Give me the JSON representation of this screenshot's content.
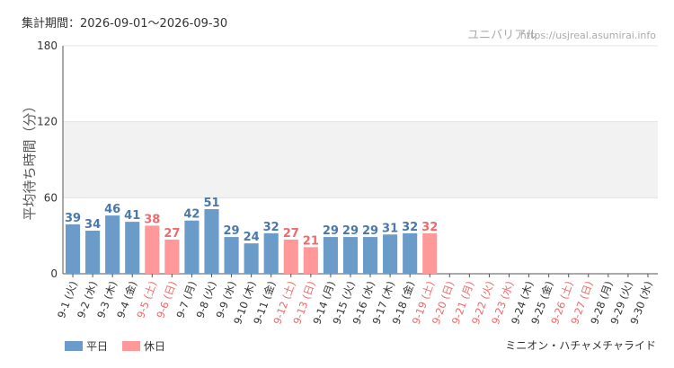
{
  "header": {
    "period": "集計期間：2026-09-01〜2026-09-30",
    "site_name": "ユニバリアル",
    "site_url": "https://usjreal.asumirai.info"
  },
  "footer": {
    "attraction": "ミニオン・ハチャメチャライド"
  },
  "colors": {
    "weekday": "#6b9bc9",
    "weekday_label": "#4a78aa",
    "holiday": "#ff9999",
    "holiday_label": "#ee6a6a",
    "band": "#f2f2f2",
    "grid": "#e3e3e3",
    "axis": "#555555",
    "tick_text": "#333333"
  },
  "chart_data": {
    "type": "bar",
    "ylabel": "平均待ち時間（分）",
    "ylim": [
      0,
      180
    ],
    "yticks": [
      0,
      60,
      120,
      180
    ],
    "highlight_band": [
      60,
      120
    ],
    "legend": [
      {
        "name": "平日",
        "kind": "weekday"
      },
      {
        "name": "休日",
        "kind": "holiday"
      }
    ],
    "legend_position": "bottom-left",
    "categories": [
      "9-1 (火)",
      "9-2 (水)",
      "9-3 (木)",
      "9-4 (金)",
      "9-5 (土)",
      "9-6 (日)",
      "9-7 (月)",
      "9-8 (火)",
      "9-9 (水)",
      "9-10 (木)",
      "9-11 (金)",
      "9-12 (土)",
      "9-13 (日)",
      "9-14 (月)",
      "9-15 (火)",
      "9-16 (水)",
      "9-17 (木)",
      "9-18 (金)",
      "9-19 (土)",
      "9-20 (日)",
      "9-21 (月)",
      "9-22 (火)",
      "9-23 (水)",
      "9-24 (木)",
      "9-25 (金)",
      "9-26 (土)",
      "9-27 (日)",
      "9-28 (月)",
      "9-29 (火)",
      "9-30 (水)"
    ],
    "values": [
      39,
      34,
      46,
      41,
      38,
      27,
      42,
      51,
      29,
      24,
      32,
      27,
      21,
      29,
      29,
      29,
      31,
      32,
      32,
      null,
      null,
      null,
      null,
      null,
      null,
      null,
      null,
      null,
      null,
      null
    ],
    "holiday": [
      false,
      false,
      false,
      false,
      true,
      true,
      false,
      false,
      false,
      false,
      false,
      true,
      true,
      false,
      false,
      false,
      false,
      false,
      true,
      true,
      true,
      true,
      true,
      false,
      false,
      true,
      true,
      false,
      false,
      false
    ]
  }
}
